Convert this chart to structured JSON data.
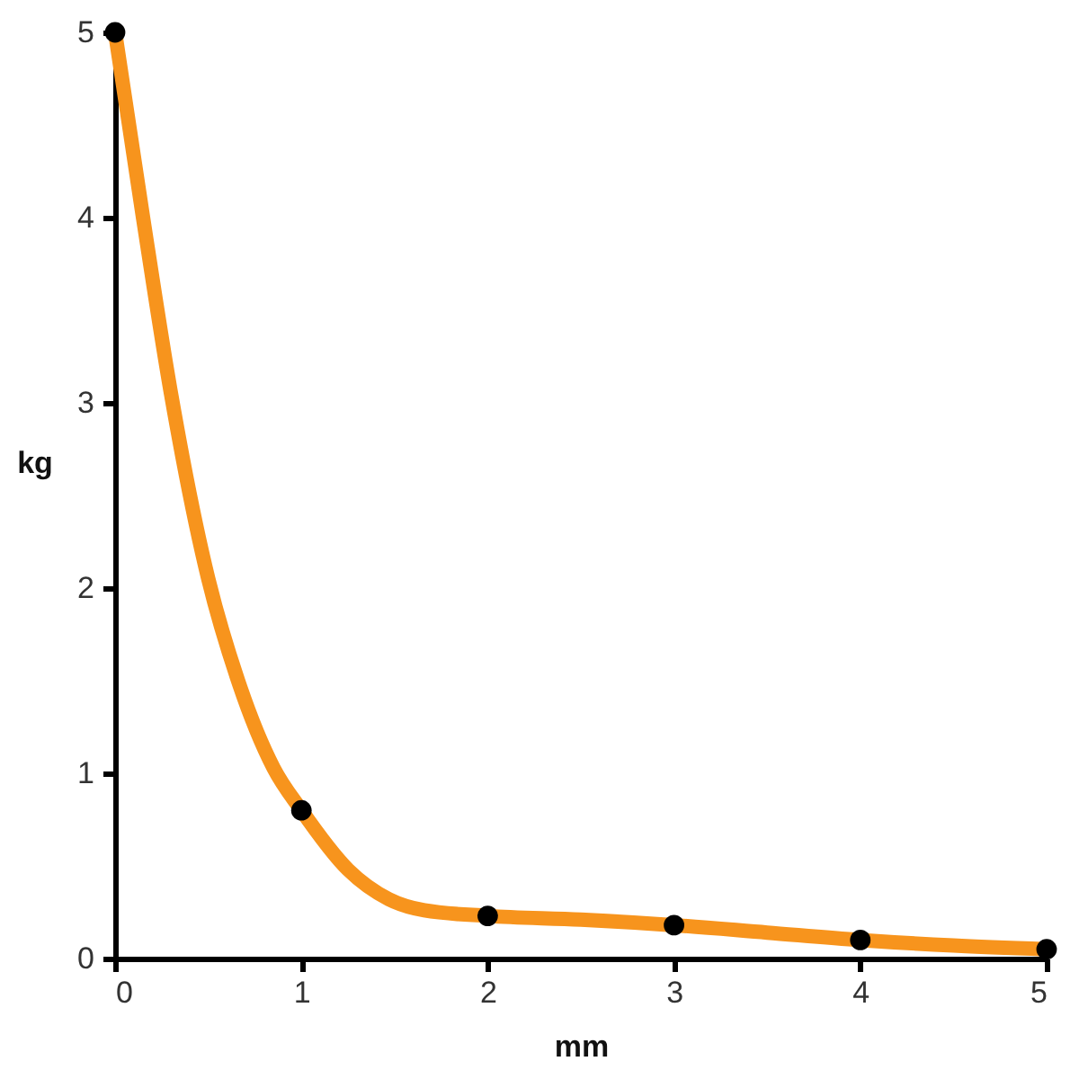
{
  "chart_data": {
    "type": "line",
    "xlabel": "mm",
    "ylabel": "kg",
    "xlim": [
      0,
      5
    ],
    "ylim": [
      0,
      5
    ],
    "xticks": [
      0,
      1,
      2,
      3,
      4,
      5
    ],
    "yticks": [
      0,
      1,
      2,
      3,
      4,
      5
    ],
    "grid": false,
    "line_style": "solid",
    "series": [
      {
        "color": "#f7941d",
        "marker": "none",
        "x": [
          0,
          0.15,
          0.3,
          0.5,
          0.66,
          0.85,
          1,
          1.25,
          1.47,
          1.66,
          2,
          2.5,
          3,
          3.5,
          4,
          4.5,
          5
        ],
        "values": [
          5,
          4,
          3.05,
          2.05,
          1.5,
          1.03,
          0.8,
          0.48,
          0.32,
          0.26,
          0.23,
          0.21,
          0.18,
          0.14,
          0.1,
          0.07,
          0.05
        ]
      },
      {
        "type": "scatter",
        "marker": "circle",
        "color": "#000000",
        "x": [
          0,
          1,
          2,
          3,
          4,
          5
        ],
        "values": [
          5,
          0.8,
          0.23,
          0.18,
          0.1,
          0.05
        ]
      }
    ]
  }
}
